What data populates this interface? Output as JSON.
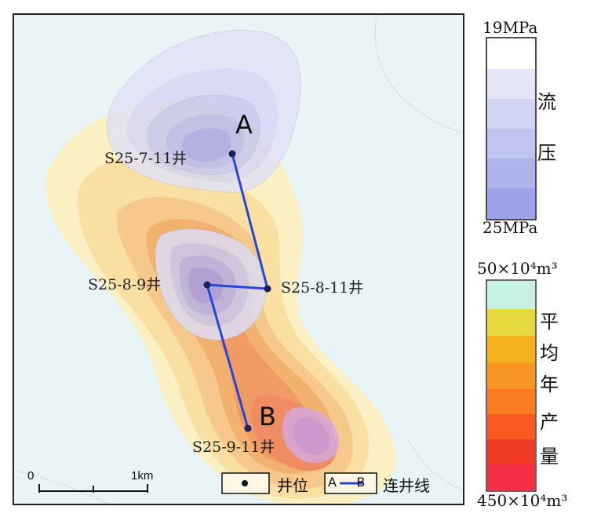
{
  "wells": [
    {
      "id": "S25-7-11井",
      "label": "S25-7-11井"
    },
    {
      "id": "S25-8-9井",
      "label": "S25-8-9井"
    },
    {
      "id": "S25-8-11井",
      "label": "S25-8-11井"
    },
    {
      "id": "S25-9-11井",
      "label": "S25-9-11井"
    }
  ],
  "points": {
    "a": "A",
    "b": "B"
  },
  "pressure_legend": {
    "top": "19MPa",
    "bottom": "25MPa",
    "chars": [
      "流",
      "压"
    ],
    "colors": [
      "#ffffff",
      "#e4e6f8",
      "#d2d5f4",
      "#c0c4f0",
      "#aeb3ec",
      "#9ca3e8",
      "#8d95e6"
    ]
  },
  "production_legend": {
    "top": "50×10⁴m³",
    "bottom": "450×10⁴m³",
    "chars": [
      "平",
      "均",
      "年",
      "产",
      "量"
    ],
    "colors": [
      "#c7f2e3",
      "#e6d93d",
      "#f4b21f",
      "#f89624",
      "#fa7a22",
      "#f75a1e",
      "#f23b24",
      "#f33044"
    ]
  },
  "scale_bar": {
    "zero": "0",
    "distance": "1km"
  },
  "map_key": {
    "well": "井位",
    "line_sample": "A-B",
    "line": "连井线"
  },
  "colors": {
    "line": "#2447d8",
    "point": "#1e1e5a"
  }
}
